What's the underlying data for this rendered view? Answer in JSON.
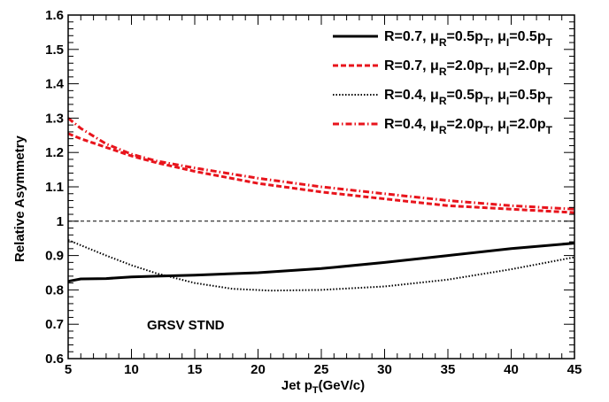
{
  "chart_data": {
    "type": "line",
    "title": "",
    "xlabel": {
      "main": "Jet p",
      "sub": "T",
      "tail": "(GeV/c)"
    },
    "ylabel": "Relative Asymmetry",
    "xlim": [
      5,
      45
    ],
    "ylim": [
      0.6,
      1.6
    ],
    "x_ticks": [
      5,
      10,
      15,
      20,
      25,
      30,
      35,
      40,
      45
    ],
    "y_ticks": [
      "0.6",
      "0.7",
      "0.8",
      "0.9",
      "1",
      "1.1",
      "1.2",
      "1.3",
      "1.4",
      "1.5",
      "1.6"
    ],
    "grid": false,
    "legend_position": "top-right",
    "reference_line": 1.0,
    "annotation": "GRSV STND",
    "series": [
      {
        "legend": [
          {
            "t": "R=0.7, μ",
            "s": ""
          },
          {
            "t": "R",
            "s": "sub"
          },
          {
            "t": "=0.5p",
            "s": ""
          },
          {
            "t": "T",
            "s": "sub"
          },
          {
            "t": ", μ",
            "s": ""
          },
          {
            "t": "I",
            "s": "sub"
          },
          {
            "t": "=0.5p",
            "s": ""
          },
          {
            "t": "T",
            "s": "sub"
          }
        ],
        "color": "#000000",
        "style": "solid",
        "x": [
          5,
          6,
          8,
          10,
          12,
          15,
          20,
          25,
          30,
          35,
          40,
          45
        ],
        "y": [
          0.825,
          0.832,
          0.833,
          0.838,
          0.84,
          0.843,
          0.85,
          0.862,
          0.88,
          0.9,
          0.92,
          0.936
        ]
      },
      {
        "legend": [
          {
            "t": "R=0.7, μ",
            "s": ""
          },
          {
            "t": "R",
            "s": "sub"
          },
          {
            "t": "=2.0p",
            "s": ""
          },
          {
            "t": "T",
            "s": "sub"
          },
          {
            "t": ", μ",
            "s": ""
          },
          {
            "t": "I",
            "s": "sub"
          },
          {
            "t": "=2.0p",
            "s": ""
          },
          {
            "t": "T",
            "s": "sub"
          }
        ],
        "color": "#e8141c",
        "style": "dashed",
        "x": [
          5,
          6,
          8,
          10,
          12,
          15,
          20,
          25,
          30,
          35,
          40,
          45
        ],
        "y": [
          1.255,
          1.24,
          1.215,
          1.19,
          1.17,
          1.145,
          1.11,
          1.085,
          1.065,
          1.045,
          1.035,
          1.025
        ]
      },
      {
        "legend": [
          {
            "t": "R=0.4, μ",
            "s": ""
          },
          {
            "t": "R",
            "s": "sub"
          },
          {
            "t": "=0.5p",
            "s": ""
          },
          {
            "t": "T",
            "s": "sub"
          },
          {
            "t": ", μ",
            "s": ""
          },
          {
            "t": "I",
            "s": "sub"
          },
          {
            "t": "=0.5p",
            "s": ""
          },
          {
            "t": "T",
            "s": "sub"
          }
        ],
        "color": "#000000",
        "style": "dotted",
        "x": [
          5,
          6,
          8,
          10,
          12,
          15,
          18,
          21,
          25,
          30,
          35,
          40,
          45
        ],
        "y": [
          0.945,
          0.93,
          0.9,
          0.872,
          0.848,
          0.82,
          0.803,
          0.798,
          0.8,
          0.81,
          0.83,
          0.86,
          0.895
        ]
      },
      {
        "legend": [
          {
            "t": "R=0.4, μ",
            "s": ""
          },
          {
            "t": "R",
            "s": "sub"
          },
          {
            "t": "=2.0p",
            "s": ""
          },
          {
            "t": "T",
            "s": "sub"
          },
          {
            "t": ", μ",
            "s": ""
          },
          {
            "t": "I",
            "s": "sub"
          },
          {
            "t": "=2.0p",
            "s": ""
          },
          {
            "t": "T",
            "s": "sub"
          }
        ],
        "color": "#e8141c",
        "style": "dashdot",
        "x": [
          5,
          6,
          8,
          10,
          12,
          15,
          20,
          25,
          30,
          35,
          40,
          45
        ],
        "y": [
          1.3,
          1.27,
          1.225,
          1.195,
          1.175,
          1.155,
          1.125,
          1.1,
          1.08,
          1.06,
          1.045,
          1.035
        ]
      }
    ]
  }
}
